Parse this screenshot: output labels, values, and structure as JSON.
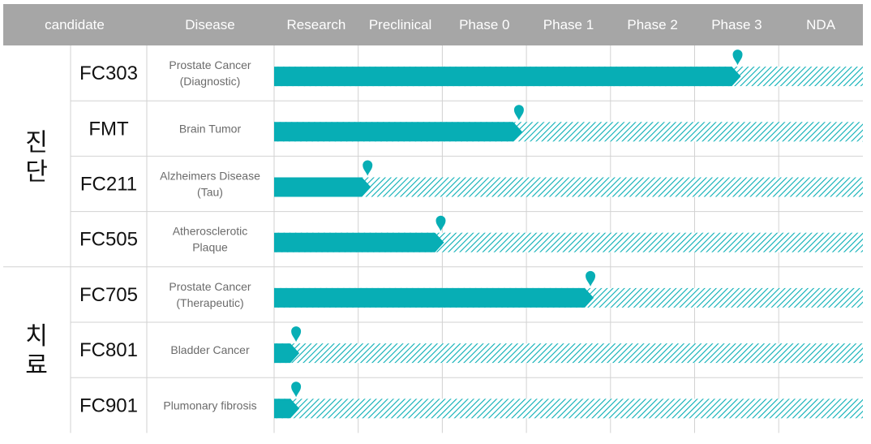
{
  "header": {
    "candidate_label": "candidate",
    "disease_label": "Disease"
  },
  "chart_data": {
    "type": "bar",
    "stages": [
      "Research",
      "Preclinical",
      "Phase 0",
      "Phase 1",
      "Phase 2",
      "Phase 3",
      "NDA"
    ],
    "value_unit": "pipeline progress measured in stage columns (0 = start of Research, 7 = end of NDA)",
    "xlim": [
      0,
      7
    ],
    "groups": [
      {
        "label": "진\n단",
        "rows": [
          0,
          1,
          2,
          3
        ]
      },
      {
        "label": "치\n료",
        "rows": [
          4,
          5,
          6
        ]
      }
    ],
    "rows": [
      {
        "candidate": "FC303",
        "disease": [
          "Prostate Cancer",
          "(Diagnostic)"
        ],
        "progress": 5.55
      },
      {
        "candidate": "FMT",
        "disease": [
          "Brain Tumor"
        ],
        "progress": 2.95
      },
      {
        "candidate": "FC211",
        "disease": [
          "Alzheimers Disease",
          "(Tau)"
        ],
        "progress": 1.15
      },
      {
        "candidate": "FC505",
        "disease": [
          "Atherosclerotic",
          "Plaque"
        ],
        "progress": 2.02
      },
      {
        "candidate": "FC705",
        "disease": [
          "Prostate Cancer",
          "(Therapeutic)"
        ],
        "progress": 3.8
      },
      {
        "candidate": "FC801",
        "disease": [
          "Bladder Cancer"
        ],
        "progress": 0.3
      },
      {
        "candidate": "FC901",
        "disease": [
          "Plumonary fibrosis"
        ],
        "progress": 0.3
      }
    ]
  },
  "colors": {
    "header_bg": "#a6a6a6",
    "header_text": "#ffffff",
    "bar": "#07aeb5",
    "hatch": "#07aeb5",
    "grid": "#d2d2d2",
    "candidate_text": "#111111",
    "disease_text": "#6b6b6b"
  }
}
